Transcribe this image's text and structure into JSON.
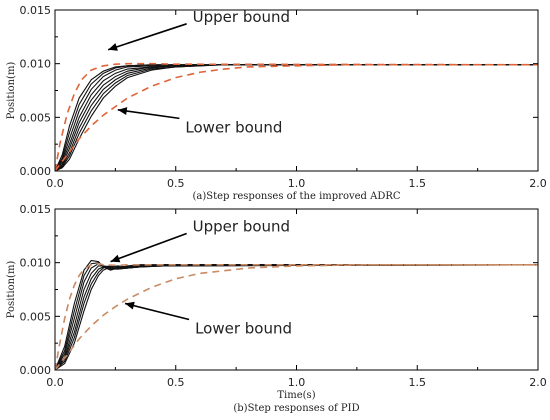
{
  "colors": {
    "response": "#111111",
    "bound_a": "#e0643a",
    "bound_b": "#c98a64",
    "axis": "#000000"
  },
  "chart_data": [
    {
      "id": "a",
      "type": "line",
      "caption": "(a)Step responses of the improved ADRC",
      "xlabel": "",
      "ylabel": "Position(m)",
      "xlim": [
        0.0,
        2.0
      ],
      "ylim": [
        0.0,
        0.015
      ],
      "xticks": [
        "0.0",
        "0.5",
        "1.0",
        "1.5",
        "2.0"
      ],
      "yticks": [
        "0.000",
        "0.005",
        "0.010",
        "0.015"
      ],
      "grid": false,
      "annotations": [
        {
          "text": "Upper bound",
          "x": 0.57,
          "y": 0.0139,
          "arrow_to": [
            0.22,
            0.0113
          ]
        },
        {
          "text": "Lower bound",
          "x": 0.54,
          "y": 0.0036,
          "arrow_to": [
            0.26,
            0.0057
          ]
        }
      ],
      "bounds": {
        "upper": {
          "x": [
            0.0,
            0.02,
            0.05,
            0.08,
            0.11,
            0.15,
            0.2,
            0.25,
            0.3,
            0.4,
            0.5,
            2.0
          ],
          "y": [
            0.0,
            0.0025,
            0.0053,
            0.0072,
            0.0085,
            0.0094,
            0.0098,
            0.00995,
            0.01,
            0.01,
            0.00995,
            0.0099
          ]
        },
        "lower": {
          "x": [
            0.0,
            0.05,
            0.1,
            0.15,
            0.2,
            0.25,
            0.3,
            0.4,
            0.5,
            0.6,
            0.7,
            0.8,
            1.0,
            1.2,
            2.0
          ],
          "y": [
            0.0,
            0.0015,
            0.003,
            0.0042,
            0.0052,
            0.006,
            0.0068,
            0.0079,
            0.0087,
            0.0092,
            0.0095,
            0.0097,
            0.0098,
            0.0099,
            0.0099
          ]
        }
      },
      "series": [
        {
          "x": [
            0.0,
            0.03,
            0.06,
            0.1,
            0.15,
            0.2,
            0.25,
            0.3,
            0.4,
            0.5,
            0.7,
            2.0
          ],
          "y": [
            0.0,
            0.0015,
            0.0042,
            0.0068,
            0.0085,
            0.0093,
            0.0097,
            0.0098,
            0.0099,
            0.0099,
            0.0099,
            0.0099
          ]
        },
        {
          "x": [
            0.0,
            0.03,
            0.06,
            0.1,
            0.15,
            0.2,
            0.25,
            0.3,
            0.4,
            0.5,
            0.7,
            2.0
          ],
          "y": [
            0.0,
            0.0012,
            0.0036,
            0.0062,
            0.0081,
            0.0091,
            0.0096,
            0.0098,
            0.0099,
            0.0099,
            0.0099,
            0.0099
          ]
        },
        {
          "x": [
            0.0,
            0.03,
            0.06,
            0.1,
            0.15,
            0.2,
            0.25,
            0.3,
            0.4,
            0.5,
            0.7,
            2.0
          ],
          "y": [
            0.0,
            0.001,
            0.003,
            0.0056,
            0.0076,
            0.0088,
            0.0094,
            0.0097,
            0.0098,
            0.0099,
            0.0099,
            0.0099
          ]
        },
        {
          "x": [
            0.0,
            0.03,
            0.06,
            0.1,
            0.15,
            0.2,
            0.25,
            0.3,
            0.4,
            0.5,
            0.7,
            2.0
          ],
          "y": [
            0.0,
            0.0008,
            0.0025,
            0.005,
            0.0071,
            0.0084,
            0.0091,
            0.0095,
            0.0097,
            0.0098,
            0.0099,
            0.0099
          ]
        },
        {
          "x": [
            0.0,
            0.03,
            0.06,
            0.1,
            0.15,
            0.2,
            0.25,
            0.3,
            0.4,
            0.5,
            0.7,
            2.0
          ],
          "y": [
            0.0,
            0.0006,
            0.0021,
            0.0045,
            0.0066,
            0.008,
            0.0088,
            0.0093,
            0.0097,
            0.0098,
            0.0099,
            0.0099
          ]
        },
        {
          "x": [
            0.0,
            0.03,
            0.06,
            0.1,
            0.15,
            0.2,
            0.25,
            0.3,
            0.4,
            0.5,
            0.7,
            2.0
          ],
          "y": [
            0.0,
            0.0005,
            0.0017,
            0.004,
            0.0061,
            0.0076,
            0.0085,
            0.0091,
            0.0096,
            0.0098,
            0.0099,
            0.0099
          ]
        },
        {
          "x": [
            0.0,
            0.03,
            0.06,
            0.1,
            0.15,
            0.2,
            0.25,
            0.3,
            0.4,
            0.5,
            0.7,
            2.0
          ],
          "y": [
            0.0,
            0.0004,
            0.0014,
            0.0035,
            0.0056,
            0.0072,
            0.0082,
            0.0089,
            0.0095,
            0.0097,
            0.0099,
            0.0099
          ]
        },
        {
          "x": [
            0.0,
            0.03,
            0.06,
            0.1,
            0.15,
            0.2,
            0.25,
            0.3,
            0.4,
            0.5,
            0.7,
            2.0
          ],
          "y": [
            0.0,
            0.0003,
            0.0011,
            0.003,
            0.0051,
            0.0068,
            0.0079,
            0.0087,
            0.0094,
            0.0097,
            0.0099,
            0.0099
          ]
        }
      ]
    },
    {
      "id": "b",
      "type": "line",
      "caption": "(b)Step responses of PID",
      "xlabel": "Time(s)",
      "ylabel": "Position(m)",
      "xlim": [
        0.0,
        2.0
      ],
      "ylim": [
        0.0,
        0.015
      ],
      "xticks": [
        "0.0",
        "0.5",
        "1.0",
        "1.5",
        "2.0"
      ],
      "yticks": [
        "0.000",
        "0.005",
        "0.010",
        "0.015"
      ],
      "grid": false,
      "annotations": [
        {
          "text": "Upper bound",
          "x": 0.57,
          "y": 0.0129,
          "arrow_to": [
            0.23,
            0.0101
          ]
        },
        {
          "text": "Lower bound",
          "x": 0.58,
          "y": 0.0034,
          "arrow_to": [
            0.29,
            0.0062
          ]
        }
      ],
      "bounds": {
        "upper": {
          "x": [
            0.0,
            0.02,
            0.04,
            0.06,
            0.08,
            0.1,
            0.12,
            0.15,
            0.18,
            0.2,
            0.25,
            0.3,
            0.4,
            2.0
          ],
          "y": [
            0.0,
            0.0025,
            0.0048,
            0.0066,
            0.0079,
            0.0088,
            0.0094,
            0.0098,
            0.0099,
            0.0098,
            0.00975,
            0.0098,
            0.0098,
            0.0098
          ]
        },
        "lower": {
          "x": [
            0.0,
            0.05,
            0.1,
            0.15,
            0.2,
            0.25,
            0.3,
            0.4,
            0.5,
            0.6,
            0.8,
            1.0,
            1.3,
            2.0
          ],
          "y": [
            0.0,
            0.0014,
            0.0029,
            0.0041,
            0.0051,
            0.0059,
            0.0066,
            0.0077,
            0.0085,
            0.009,
            0.0095,
            0.0097,
            0.0098,
            0.0098
          ]
        }
      },
      "series": [
        {
          "x": [
            0.0,
            0.04,
            0.08,
            0.12,
            0.15,
            0.18,
            0.2,
            0.23,
            0.26,
            0.3,
            0.35,
            0.45,
            2.0
          ],
          "y": [
            0.0,
            0.0022,
            0.0062,
            0.0093,
            0.0102,
            0.0101,
            0.0096,
            0.0093,
            0.0095,
            0.0097,
            0.0098,
            0.0098,
            0.0098
          ]
        },
        {
          "x": [
            0.0,
            0.04,
            0.08,
            0.12,
            0.15,
            0.18,
            0.2,
            0.23,
            0.26,
            0.3,
            0.35,
            0.45,
            2.0
          ],
          "y": [
            0.0,
            0.0018,
            0.0055,
            0.0088,
            0.0099,
            0.01,
            0.0097,
            0.0094,
            0.0094,
            0.0096,
            0.0098,
            0.0098,
            0.0098
          ]
        },
        {
          "x": [
            0.0,
            0.04,
            0.08,
            0.12,
            0.15,
            0.18,
            0.2,
            0.23,
            0.26,
            0.3,
            0.35,
            0.45,
            2.0
          ],
          "y": [
            0.0,
            0.0015,
            0.0048,
            0.0082,
            0.0095,
            0.0099,
            0.0097,
            0.0095,
            0.0094,
            0.0095,
            0.0097,
            0.0098,
            0.0098
          ]
        },
        {
          "x": [
            0.0,
            0.04,
            0.08,
            0.12,
            0.15,
            0.18,
            0.2,
            0.23,
            0.26,
            0.3,
            0.35,
            0.45,
            2.0
          ],
          "y": [
            0.0,
            0.0012,
            0.0041,
            0.0075,
            0.009,
            0.0097,
            0.0097,
            0.0096,
            0.0094,
            0.0095,
            0.0096,
            0.0098,
            0.0098
          ]
        },
        {
          "x": [
            0.0,
            0.04,
            0.08,
            0.12,
            0.15,
            0.18,
            0.2,
            0.23,
            0.26,
            0.3,
            0.35,
            0.45,
            2.0
          ],
          "y": [
            0.0,
            0.001,
            0.0035,
            0.0068,
            0.0085,
            0.0094,
            0.0096,
            0.0097,
            0.0095,
            0.0095,
            0.0096,
            0.0098,
            0.0098
          ]
        },
        {
          "x": [
            0.0,
            0.04,
            0.08,
            0.12,
            0.15,
            0.18,
            0.2,
            0.23,
            0.26,
            0.3,
            0.35,
            0.45,
            2.0
          ],
          "y": [
            0.0,
            0.0008,
            0.003,
            0.0062,
            0.008,
            0.0091,
            0.0095,
            0.0097,
            0.0096,
            0.0095,
            0.0096,
            0.0097,
            0.0098
          ]
        },
        {
          "x": [
            0.0,
            0.04,
            0.08,
            0.12,
            0.15,
            0.18,
            0.2,
            0.23,
            0.26,
            0.3,
            0.35,
            0.45,
            2.0
          ],
          "y": [
            0.0,
            0.0006,
            0.0025,
            0.0055,
            0.0075,
            0.0088,
            0.0093,
            0.0096,
            0.0097,
            0.0096,
            0.0096,
            0.0097,
            0.0098
          ]
        }
      ]
    }
  ]
}
